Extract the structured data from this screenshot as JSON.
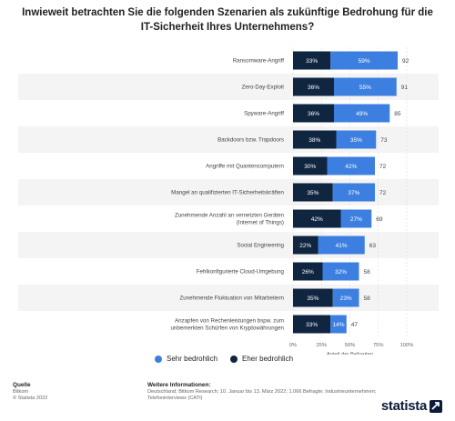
{
  "title": "Inwieweit betrachten Sie die folgenden Szenarien als zukünftige Bedrohung für die IT-Sicherheit Ihres Unternehmens?",
  "colors": {
    "sehr": "#3c7fe0",
    "eher": "#0f2540",
    "band": "#f4f4f4",
    "grid": "#dddddd"
  },
  "legend": {
    "sehr": "Sehr bedrohlich",
    "eher": "Eher bedrohlich"
  },
  "footer": {
    "source_head": "Quelle",
    "source_lines": [
      "Bitkom",
      "© Statista 2022"
    ],
    "info_head": "Weitere Informationen:",
    "info_lines": [
      "Deutschland; Bitkom Research; 10. Januar bis 13. März 2022; 1.066 Befragte; Industrieunternehmen;",
      "Telefoninterviews (CATI)"
    ]
  },
  "logo": {
    "text": "statista"
  },
  "chart_data": {
    "type": "bar",
    "orientation": "horizontal",
    "stacked": true,
    "categories": [
      [
        "Ransomware-Angriff"
      ],
      [
        "Zero-Day-Exploit"
      ],
      [
        "Spyware-Angriff"
      ],
      [
        "Backdoors bzw. Trapdoors"
      ],
      [
        "Angriffe mit Quantencomputern"
      ],
      [
        "Mangel an qualifizierten IT-Sicherheitskräften"
      ],
      [
        "Zunehmende Anzahl an vernetzten Geräten",
        "(Internet of Things)"
      ],
      [
        "Social Engineering"
      ],
      [
        "Fehlkonfigurierte Cloud-Umgebung"
      ],
      [
        "Zunehmende Fluktuation von Mitarbeitern"
      ],
      [
        "Anzapfen von Rechenleistungen bspw. zum",
        "unbemerkten Schürfen von Kryptowährungen"
      ]
    ],
    "series": [
      {
        "name": "Eher bedrohlich",
        "values": [
          33,
          36,
          36,
          38,
          30,
          35,
          42,
          22,
          26,
          35,
          33
        ]
      },
      {
        "name": "Sehr bedrohlich",
        "values": [
          59,
          55,
          49,
          35,
          42,
          37,
          27,
          41,
          32,
          23,
          14
        ]
      }
    ],
    "totals": [
      92,
      91,
      85,
      73,
      72,
      72,
      69,
      63,
      58,
      58,
      47
    ],
    "value_suffix": "%",
    "xlim": [
      0,
      100
    ],
    "xticks": [
      0,
      25,
      50,
      75,
      100
    ],
    "xtick_labels": [
      "0%",
      "25%",
      "50%",
      "75%",
      "100%"
    ],
    "xlabel": "Anteil der Befragten",
    "grid": true
  }
}
